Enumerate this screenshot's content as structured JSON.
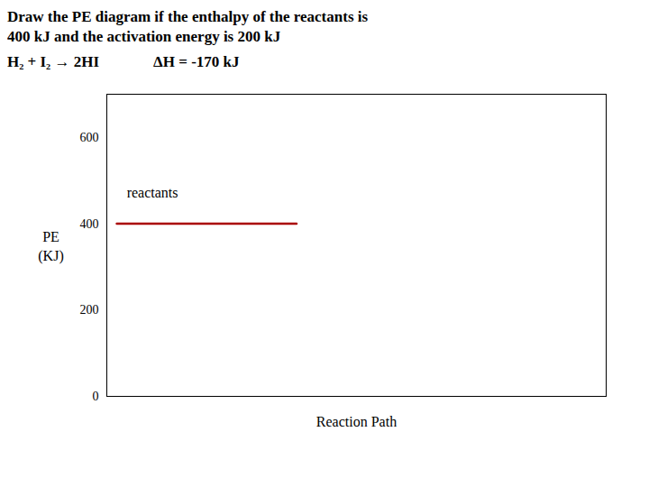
{
  "chart_data": {
    "type": "line",
    "title": "Draw the PE diagram if the enthalpy of the reactants is",
    "subtitle": "400 kJ and the activation energy is 200 kJ",
    "annotations": [
      {
        "text": "H₂ + I₂ → 2HI"
      },
      {
        "text": "ΔH = -170 kJ"
      },
      {
        "text": "reactants",
        "x": 0.04,
        "y": 460
      }
    ],
    "series": [
      {
        "color": "#AA0000",
        "x": [
          0.02,
          0.38
        ],
        "values": [
          400,
          400
        ]
      }
    ],
    "xlabel": "Reaction Path",
    "ylabel": "PE\n(KJ)",
    "xlim": [
      0,
      1
    ],
    "ylim": [
      0,
      700
    ],
    "yticks": [
      0,
      200,
      400,
      600
    ],
    "tick_labels": "y"
  }
}
